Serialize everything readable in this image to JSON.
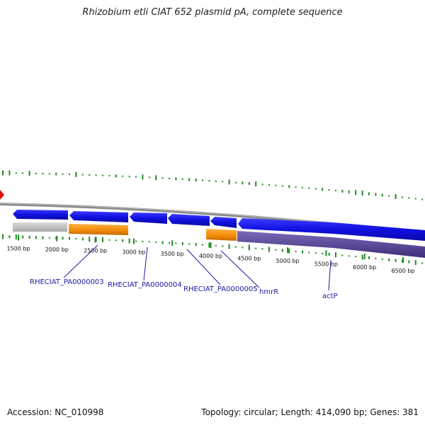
{
  "title": "Rhizobium etli CIAT 652 plasmid pA, complete sequence",
  "footer": {
    "accession": "Accession: NC_010998",
    "summary": "Topology: circular; Length: 414,090 bp; Genes: 381"
  },
  "colors": {
    "backbone": "#8a8a8a",
    "cds_forward": "#1414e6",
    "cds_orange": "#f0900a",
    "cds_grey": "#c4c4c4",
    "reverse_track": "#5a4a96",
    "gc_skew": "#1e8c1e",
    "origin_marker": "#e01010",
    "label": "#1a1aa0"
  },
  "scale_ticks": [
    "1500 bp",
    "2000 bp",
    "2500 bp",
    "3000 bp",
    "3500 bp",
    "4000 bp",
    "4500 bp",
    "5000 bp",
    "5500 bp",
    "6000 bp",
    "6500 bp"
  ],
  "gene_labels": [
    "RHECIAT_PA0000003",
    "RHECIAT_PA0000004",
    "RHECIAT_PA0000005",
    "hmrR",
    "actP"
  ]
}
